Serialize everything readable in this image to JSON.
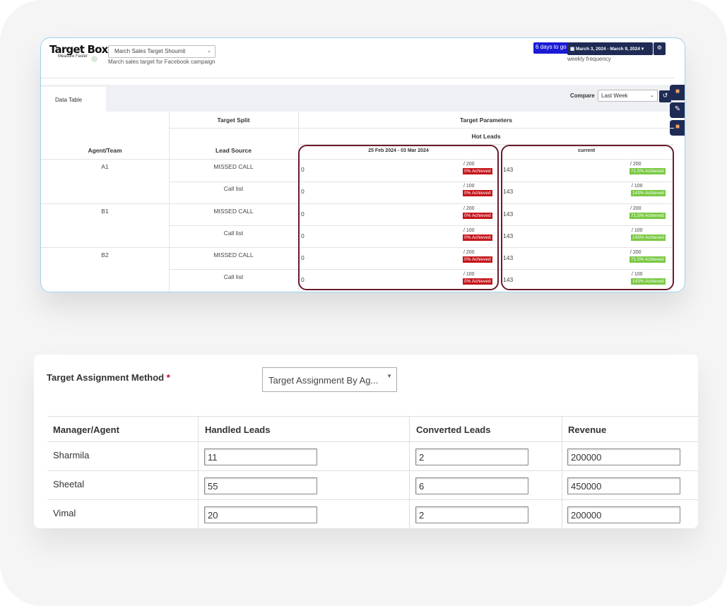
{
  "target_box": {
    "logo": "Target Box",
    "logo_tagline": "Measure Faster",
    "target_select": "March Sales Target Shoumit",
    "target_description": "March sales target for Facebook campaign",
    "days_badge": "6 days to go",
    "date_range": "March 3, 2024 - March 9, 2024",
    "frequency": "weekly frequency",
    "tab_label": "Data Table",
    "compare_label": "Compare",
    "compare_value": "Last Week",
    "headers": {
      "target_split": "Target Split",
      "target_parameters": "Target Parameters",
      "hot_leads": "Hot Leads",
      "agent_team": "Agent/Team",
      "lead_source": "Lead Source",
      "period_previous": "25 Feb 2024 - 03 Mar 2024",
      "period_current": "current"
    },
    "rows": [
      {
        "agent": "A1",
        "source": "MISSED CALL",
        "prev": "0",
        "prev_goal": "/ 200",
        "prev_ach": "0% Achieved",
        "cur": "143",
        "cur_goal": "/ 200",
        "cur_ach": "71.5% Achieved"
      },
      {
        "agent": "",
        "source": "Call list",
        "prev": "0",
        "prev_goal": "/ 100",
        "prev_ach": "0% Achieved",
        "cur": "143",
        "cur_goal": "/ 100",
        "cur_ach": "143% Achieved"
      },
      {
        "agent": "B1",
        "source": "MISSED CALL",
        "prev": "0",
        "prev_goal": "/ 200",
        "prev_ach": "0% Achieved",
        "cur": "143",
        "cur_goal": "/ 200",
        "cur_ach": "71.5% Achieved"
      },
      {
        "agent": "",
        "source": "Call list",
        "prev": "0",
        "prev_goal": "/ 100",
        "prev_ach": "0% Achieved",
        "cur": "143",
        "cur_goal": "/ 100",
        "cur_ach": "143% Achieved"
      },
      {
        "agent": "B2",
        "source": "MISSED CALL",
        "prev": "0",
        "prev_goal": "/ 200",
        "prev_ach": "0% Achieved",
        "cur": "143",
        "cur_goal": "/ 200",
        "cur_ach": "71.5% Achieved"
      },
      {
        "agent": "",
        "source": "Call list",
        "prev": "0",
        "prev_goal": "/ 100",
        "prev_ach": "0% Achieved",
        "cur": "143",
        "cur_goal": "/ 100",
        "cur_ach": "143% Achieved"
      }
    ],
    "colors": {
      "navy": "#1f2b55",
      "badge_blue": "#1a1ad6",
      "red": "#c4161c",
      "green": "#7ac943",
      "highlight": "#6a1b2d"
    },
    "icons": [
      "calendar-icon",
      "settings-icon",
      "refresh-icon",
      "comment-icon",
      "pencil-icon",
      "folder-icon"
    ]
  },
  "assignment": {
    "method_label": "Target Assignment Method",
    "required_mark": "*",
    "method_value": "Target Assignment By Ag...",
    "columns": [
      "Manager/Agent",
      "Handled Leads",
      "Converted Leads",
      "Revenue"
    ],
    "rows": [
      {
        "name": "Sharmila",
        "handled": "11",
        "converted": "2",
        "revenue": "200000"
      },
      {
        "name": "Sheetal",
        "handled": "55",
        "converted": "6",
        "revenue": "450000"
      },
      {
        "name": "Vimal",
        "handled": "20",
        "converted": "2",
        "revenue": "200000"
      }
    ]
  }
}
